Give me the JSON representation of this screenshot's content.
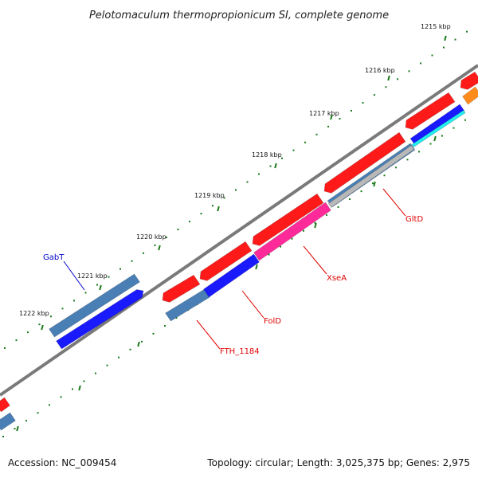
{
  "title": "Pelotomaculum thermopropionicum SI, complete genome",
  "ruler": {
    "tick_labels": [
      "1215 kbp",
      "1216 kbp",
      "1217 kbp",
      "1218 kbp",
      "1219 kbp",
      "1220 kbp",
      "1221 kbp",
      "1222 kbp"
    ],
    "tick_color": "#1a7a1a"
  },
  "colors": {
    "backbone": "#7a7a7a",
    "red": "#ff1a1a",
    "steelblue": "#4a7fb5",
    "blue": "#1a1aff",
    "magenta": "#ff2a9a",
    "silver": "#b8b8b8",
    "cyan": "#22eeee",
    "orange": "#ff8c1a",
    "red_label": "#e00000",
    "blue_label": "#0000cc"
  },
  "genes": [
    {
      "name": "GabT",
      "label": "GabT",
      "label_color": "blue"
    },
    {
      "name": "FTH_1184",
      "label": "FTH_1184",
      "label_color": "red"
    },
    {
      "name": "FolD",
      "label": "FolD",
      "label_color": "red"
    },
    {
      "name": "XseA",
      "label": "XseA",
      "label_color": "red"
    },
    {
      "name": "GltD",
      "label": "GltD",
      "label_color": "red"
    }
  ],
  "footer": {
    "accession": "Accession: NC_009454",
    "info": "Topology: circular; Length: 3,025,375 bp; Genes: 2,975"
  }
}
